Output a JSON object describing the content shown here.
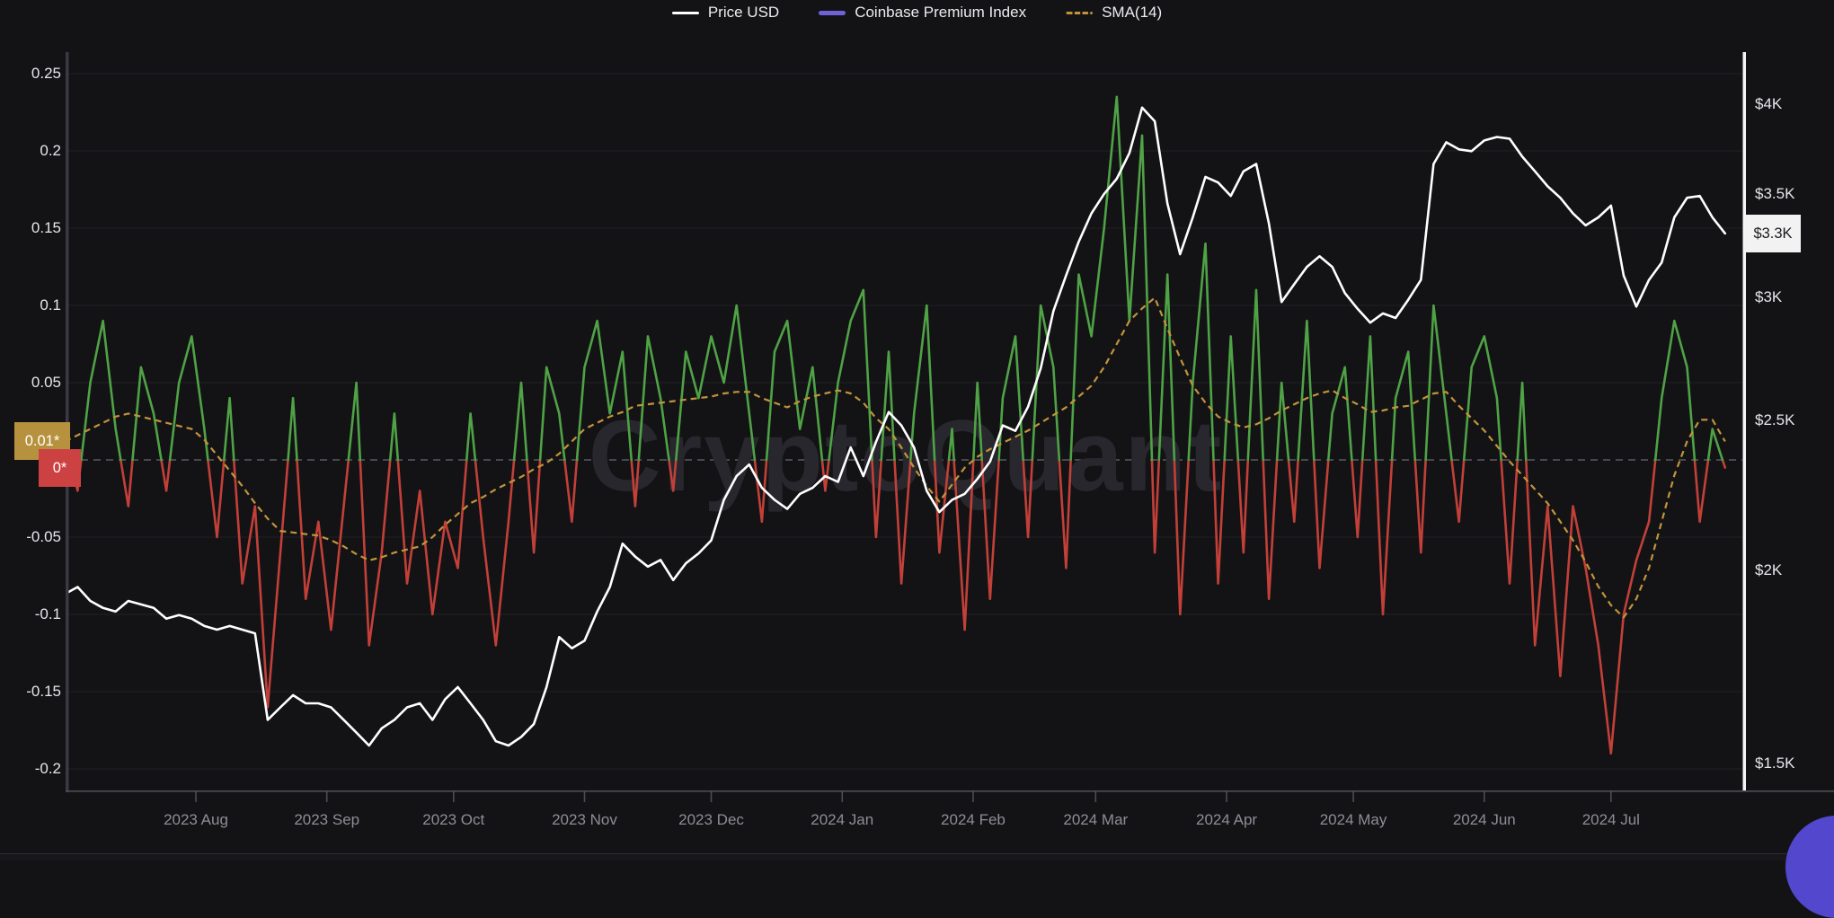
{
  "legend": {
    "items": [
      {
        "label": "Price USD",
        "swatch": "solid-line",
        "color": "#ffffff"
      },
      {
        "label": "Coinbase Premium Index",
        "swatch": "solid-line",
        "color": "#6e63d6"
      },
      {
        "label": "SMA(14)",
        "swatch": "dashed-line",
        "color": "#c2943a"
      }
    ]
  },
  "watermark": "CryptoQuant",
  "badges": {
    "sma_current": "0.01*",
    "premium_current": "0*",
    "price_current": "$3.3K"
  },
  "axes": {
    "left": {
      "ticks": [
        {
          "label": "0.25",
          "value": 0.25
        },
        {
          "label": "0.2",
          "value": 0.2
        },
        {
          "label": "0.15",
          "value": 0.15
        },
        {
          "label": "0.1",
          "value": 0.1
        },
        {
          "label": "0.05",
          "value": 0.05
        },
        {
          "label": "-0.05",
          "value": -0.05
        },
        {
          "label": "-0.1",
          "value": -0.1
        },
        {
          "label": "-0.15",
          "value": -0.15
        },
        {
          "label": "-0.2",
          "value": -0.2
        }
      ]
    },
    "right": {
      "ticks": [
        {
          "label": "$4K",
          "value": 4
        },
        {
          "label": "$3.5K",
          "value": 3.5
        },
        {
          "label": "$3K",
          "value": 3
        },
        {
          "label": "$2.5K",
          "value": 2.5
        },
        {
          "label": "$2K",
          "value": 2
        },
        {
          "label": "$1.5K",
          "value": 1.5
        }
      ]
    },
    "x": {
      "ticks": [
        {
          "label": "2023 Aug",
          "day": 31
        },
        {
          "label": "2023 Sep",
          "day": 62
        },
        {
          "label": "2023 Oct",
          "day": 92
        },
        {
          "label": "2023 Nov",
          "day": 123
        },
        {
          "label": "2023 Dec",
          "day": 153
        },
        {
          "label": "2024 Jan",
          "day": 184
        },
        {
          "label": "2024 Feb",
          "day": 215
        },
        {
          "label": "2024 Mar",
          "day": 244
        },
        {
          "label": "2024 Apr",
          "day": 275
        },
        {
          "label": "2024 May",
          "day": 305
        },
        {
          "label": "2024 Jun",
          "day": 336
        },
        {
          "label": "2024 Jul",
          "day": 366
        }
      ]
    }
  },
  "chart_data": {
    "type": "line",
    "x_description": "daily time axis, Jul 2023 - Jul 2024 (day offsets from first point at left edge)",
    "left_axis": {
      "series": "Coinbase Premium Index / SMA(14)",
      "range": [
        -0.215,
        0.263
      ],
      "tick_step": 0.05,
      "grid": true
    },
    "right_axis": {
      "series": "Price USD",
      "scale": "log",
      "range_usd_k": [
        1.45,
        4.15
      ],
      "ticks_usd_k": [
        4,
        3.5,
        3,
        2.5,
        2,
        1.5
      ]
    },
    "zero_line": {
      "value": 0,
      "style": "dashed",
      "color": "#5a5a63"
    },
    "legend_position": "top-center",
    "days": [
      0,
      3,
      6,
      9,
      12,
      15,
      18,
      21,
      24,
      27,
      30,
      33,
      36,
      39,
      42,
      45,
      48,
      51,
      54,
      57,
      60,
      63,
      66,
      69,
      72,
      75,
      78,
      81,
      84,
      87,
      90,
      93,
      96,
      99,
      102,
      105,
      108,
      111,
      114,
      117,
      120,
      123,
      126,
      129,
      132,
      135,
      138,
      141,
      144,
      147,
      150,
      153,
      156,
      159,
      162,
      165,
      168,
      171,
      174,
      177,
      180,
      183,
      186,
      189,
      192,
      195,
      198,
      201,
      204,
      207,
      210,
      213,
      216,
      219,
      222,
      225,
      228,
      231,
      234,
      237,
      240,
      243,
      246,
      249,
      252,
      255,
      258,
      261,
      264,
      267,
      270,
      273,
      276,
      279,
      282,
      285,
      288,
      291,
      294,
      297,
      300,
      303,
      306,
      309,
      312,
      315,
      318,
      321,
      324,
      327,
      330,
      333,
      336,
      339,
      342,
      345,
      348,
      351,
      354,
      357,
      360,
      363,
      366,
      369,
      372,
      375,
      378,
      381,
      384,
      387,
      390,
      393
    ],
    "series": [
      {
        "name": "Price USD",
        "axis": "right",
        "unit": "USD thousands",
        "color": "#ffffff",
        "line": "solid",
        "values": [
          1.93,
          1.95,
          1.91,
          1.89,
          1.88,
          1.91,
          1.9,
          1.89,
          1.86,
          1.87,
          1.86,
          1.84,
          1.83,
          1.84,
          1.83,
          1.82,
          1.6,
          1.63,
          1.66,
          1.64,
          1.64,
          1.63,
          1.6,
          1.57,
          1.54,
          1.58,
          1.6,
          1.63,
          1.64,
          1.6,
          1.65,
          1.68,
          1.64,
          1.6,
          1.55,
          1.54,
          1.56,
          1.59,
          1.68,
          1.81,
          1.78,
          1.8,
          1.88,
          1.95,
          2.08,
          2.04,
          2.01,
          2.03,
          1.97,
          2.02,
          2.05,
          2.09,
          2.22,
          2.3,
          2.34,
          2.26,
          2.22,
          2.19,
          2.24,
          2.26,
          2.3,
          2.28,
          2.4,
          2.3,
          2.42,
          2.53,
          2.48,
          2.4,
          2.25,
          2.18,
          2.22,
          2.24,
          2.29,
          2.35,
          2.48,
          2.46,
          2.55,
          2.7,
          2.94,
          3.1,
          3.26,
          3.4,
          3.5,
          3.58,
          3.72,
          3.98,
          3.9,
          3.45,
          3.2,
          3.38,
          3.59,
          3.56,
          3.49,
          3.62,
          3.66,
          3.35,
          2.98,
          3.06,
          3.14,
          3.19,
          3.14,
          3.02,
          2.95,
          2.89,
          2.93,
          2.91,
          2.99,
          3.08,
          3.66,
          3.78,
          3.74,
          3.73,
          3.79,
          3.81,
          3.8,
          3.7,
          3.62,
          3.54,
          3.48,
          3.4,
          3.34,
          3.38,
          3.44,
          3.1,
          2.96,
          3.08,
          3.16,
          3.38,
          3.48,
          3.49,
          3.38,
          3.3
        ]
      },
      {
        "name": "Coinbase Premium Index",
        "axis": "left",
        "color_above_zero": "#4fa245",
        "color_below_zero": "#c24038",
        "line": "solid",
        "values": [
          0.01,
          -0.02,
          0.05,
          0.09,
          0.02,
          -0.03,
          0.06,
          0.03,
          -0.02,
          0.05,
          0.08,
          0.02,
          -0.05,
          0.04,
          -0.08,
          -0.03,
          -0.16,
          -0.06,
          0.04,
          -0.09,
          -0.04,
          -0.11,
          -0.03,
          0.05,
          -0.12,
          -0.06,
          0.03,
          -0.08,
          -0.02,
          -0.1,
          -0.04,
          -0.07,
          0.03,
          -0.05,
          -0.12,
          -0.04,
          0.05,
          -0.06,
          0.06,
          0.03,
          -0.04,
          0.06,
          0.09,
          0.03,
          0.07,
          -0.03,
          0.08,
          0.04,
          -0.02,
          0.07,
          0.04,
          0.08,
          0.05,
          0.1,
          0.03,
          -0.04,
          0.07,
          0.09,
          0.02,
          0.06,
          -0.02,
          0.05,
          0.09,
          0.11,
          -0.05,
          0.07,
          -0.08,
          0.03,
          0.1,
          -0.06,
          0.02,
          -0.11,
          0.05,
          -0.09,
          0.04,
          0.08,
          -0.05,
          0.1,
          0.06,
          -0.07,
          0.12,
          0.08,
          0.15,
          0.235,
          0.09,
          0.21,
          -0.06,
          0.12,
          -0.1,
          0.05,
          0.14,
          -0.08,
          0.08,
          -0.06,
          0.11,
          -0.09,
          0.05,
          -0.04,
          0.09,
          -0.07,
          0.03,
          0.06,
          -0.05,
          0.08,
          -0.1,
          0.04,
          0.07,
          -0.06,
          0.1,
          0.03,
          -0.04,
          0.06,
          0.08,
          0.04,
          -0.08,
          0.05,
          -0.12,
          -0.03,
          -0.14,
          -0.03,
          -0.07,
          -0.12,
          -0.19,
          -0.1,
          -0.065,
          -0.04,
          0.04,
          0.09,
          0.06,
          -0.04,
          0.02,
          -0.005
        ]
      },
      {
        "name": "SMA(14)",
        "axis": "left",
        "color": "#c2943a",
        "line": "dashed",
        "values": [
          0.012,
          0.016,
          0.02,
          0.024,
          0.028,
          0.03,
          0.028,
          0.026,
          0.024,
          0.022,
          0.02,
          0.013,
          0.003,
          -0.007,
          -0.017,
          -0.028,
          -0.038,
          -0.046,
          -0.047,
          -0.048,
          -0.049,
          -0.052,
          -0.056,
          -0.061,
          -0.065,
          -0.063,
          -0.06,
          -0.058,
          -0.056,
          -0.05,
          -0.042,
          -0.035,
          -0.028,
          -0.024,
          -0.019,
          -0.015,
          -0.011,
          -0.006,
          -0.002,
          0.004,
          0.012,
          0.02,
          0.024,
          0.028,
          0.031,
          0.035,
          0.036,
          0.037,
          0.038,
          0.039,
          0.04,
          0.041,
          0.043,
          0.044,
          0.044,
          0.04,
          0.037,
          0.034,
          0.038,
          0.041,
          0.043,
          0.045,
          0.043,
          0.037,
          0.027,
          0.02,
          0.008,
          -0.005,
          -0.017,
          -0.027,
          -0.016,
          -0.005,
          0.002,
          0.007,
          0.011,
          0.015,
          0.019,
          0.024,
          0.029,
          0.034,
          0.041,
          0.048,
          0.06,
          0.075,
          0.09,
          0.098,
          0.105,
          0.085,
          0.066,
          0.048,
          0.037,
          0.028,
          0.024,
          0.021,
          0.023,
          0.027,
          0.032,
          0.036,
          0.04,
          0.043,
          0.045,
          0.04,
          0.036,
          0.031,
          0.032,
          0.034,
          0.035,
          0.039,
          0.043,
          0.044,
          0.035,
          0.027,
          0.019,
          0.009,
          -0.001,
          -0.01,
          -0.019,
          -0.028,
          -0.04,
          -0.052,
          -0.066,
          -0.082,
          -0.094,
          -0.102,
          -0.09,
          -0.07,
          -0.04,
          -0.01,
          0.012,
          0.026,
          0.026,
          0.012
        ]
      }
    ],
    "last_values": {
      "price": "$3.3K",
      "premium": "0*",
      "sma": "0.01*"
    }
  }
}
